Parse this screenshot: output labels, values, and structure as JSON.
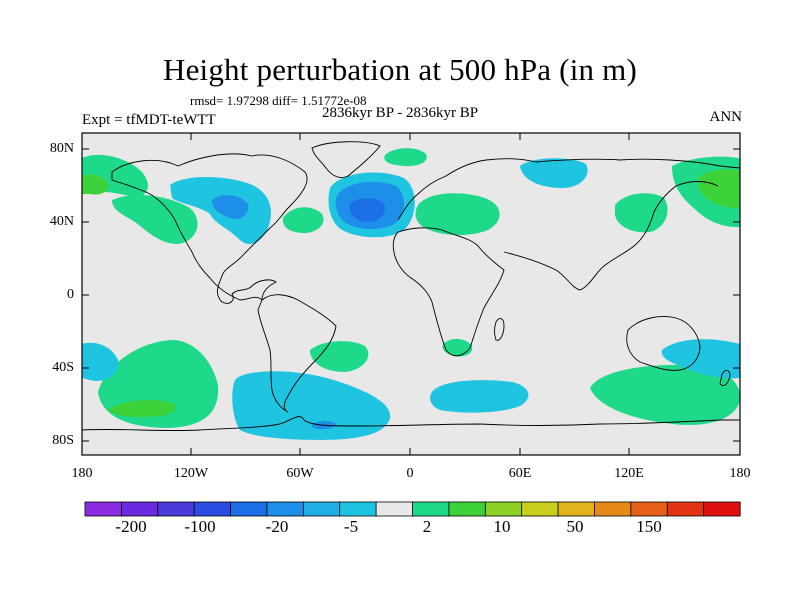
{
  "title": "Height perturbation at 500 hPa (in m)",
  "stats": "rmsd= 1.97298 diff= 1.51772e-08",
  "period": "2836kyr BP - 2836kyr BP",
  "experiment": "Expt = tfMDT-teWTT",
  "season": "ANN",
  "map": {
    "lat_ticks": [
      "80N",
      "40N",
      "0",
      "40S",
      "80S"
    ],
    "lon_ticks": [
      "180",
      "120W",
      "60W",
      "0",
      "60E",
      "120E",
      "180"
    ]
  },
  "colorbar": {
    "labels": [
      "-200",
      "-100",
      "-20",
      "-5",
      "2",
      "10",
      "50",
      "150"
    ],
    "colors": [
      "#8a2be2",
      "#6a2adf",
      "#4a3ad8",
      "#2a4ce0",
      "#1c6fe6",
      "#1e8fe8",
      "#20aee6",
      "#1fc4e0",
      "#e8e8e8",
      "#1fd98a",
      "#3ed23a",
      "#8ed126",
      "#c9cf1c",
      "#e0b41a",
      "#e58a19",
      "#e55f18",
      "#e33515",
      "#e01010"
    ]
  },
  "palette": {
    "ocean_land": "#e8e8e8",
    "pos_light": "#1fd98a",
    "pos_mid": "#3ed23a",
    "neg_light": "#1fc4e0",
    "neg_mid": "#1e8fe8",
    "neg_dark": "#1c6fe6"
  }
}
